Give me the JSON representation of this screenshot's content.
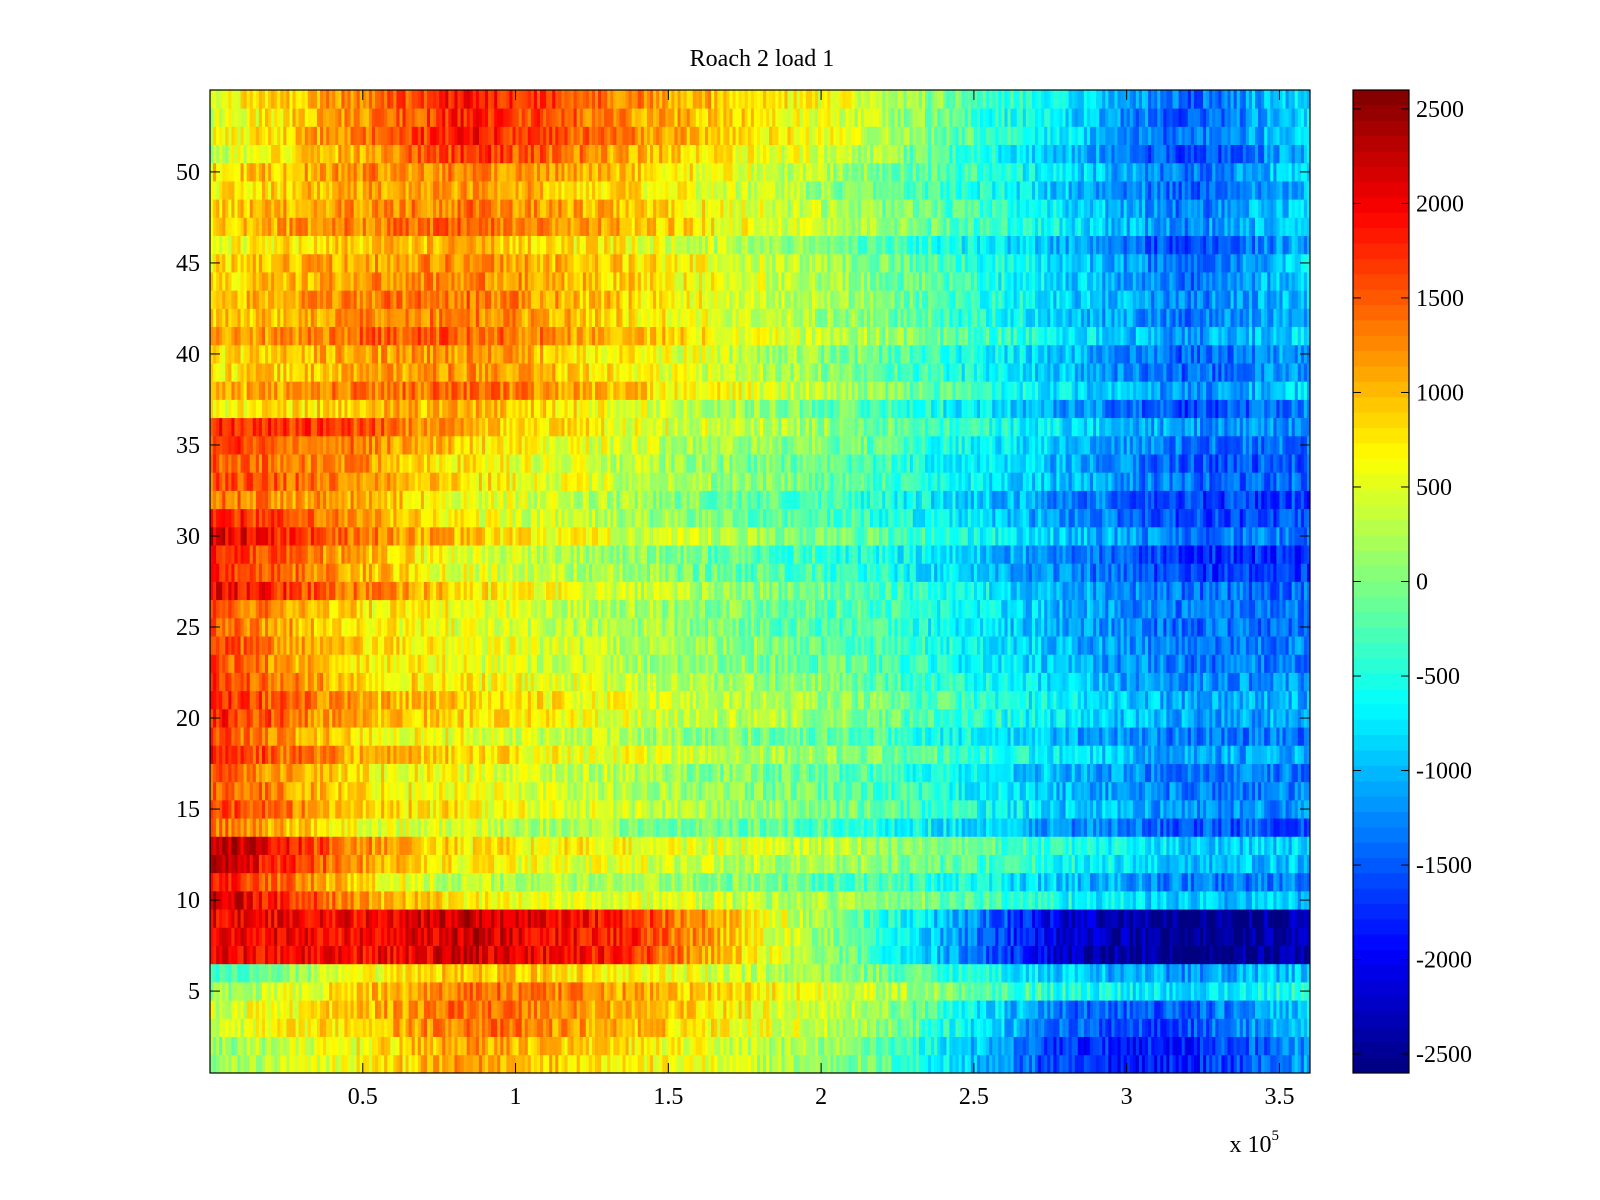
{
  "chart_data": {
    "type": "heatmap",
    "title": "Roach 2 load 1",
    "xlabel": "",
    "ylabel": "",
    "x_exponent_label": "x 10",
    "x_exponent": "5",
    "xlim": [
      0,
      3.6
    ],
    "ylim": [
      0.5,
      54.5
    ],
    "clim": [
      -2600,
      2600
    ],
    "colormap": "jet",
    "x_ticks": [
      0.5,
      1,
      1.5,
      2,
      2.5,
      3,
      3.5
    ],
    "x_tick_labels": [
      "0.5",
      "1",
      "1.5",
      "2",
      "2.5",
      "3",
      "3.5"
    ],
    "y_ticks": [
      5,
      10,
      15,
      20,
      25,
      30,
      35,
      40,
      45,
      50
    ],
    "y_tick_labels": [
      "5",
      "10",
      "15",
      "20",
      "25",
      "30",
      "35",
      "40",
      "45",
      "50"
    ],
    "colorbar_ticks": [
      2500,
      2000,
      1500,
      1000,
      500,
      0,
      -500,
      -1000,
      -1500,
      -2000,
      -2500
    ],
    "colorbar_tick_labels": [
      "2500",
      "2000",
      "1500",
      "1000",
      "500",
      "0",
      "-500",
      "-1000",
      "-1500",
      "-2000",
      "-2500"
    ],
    "n_rows": 54,
    "x_profile_units": "x 10^5",
    "x_profile_x": [
      0.0,
      0.5,
      0.85,
      1.35,
      2.15,
      2.8,
      3.2,
      3.6
    ],
    "x_profile_values": [
      1300,
      1000,
      950,
      700,
      100,
      -800,
      -1200,
      -1000
    ],
    "row_group_profiles": [
      {
        "rows": "1-4",
        "values": [
          300,
          900,
          1400,
          1000,
          200,
          -1500,
          -1600,
          -900
        ]
      },
      {
        "rows": "5-6",
        "values": [
          -200,
          700,
          1200,
          900,
          200,
          -700,
          -1000,
          -700
        ]
      },
      {
        "rows": "7-9",
        "values": [
          2000,
          1900,
          2200,
          1800,
          -300,
          -2200,
          -2600,
          -2400
        ]
      },
      {
        "rows": "10-13",
        "values": [
          2200,
          1000,
          500,
          400,
          0,
          -700,
          -1100,
          -1100
        ]
      },
      {
        "rows": "14-26",
        "values": [
          1600,
          800,
          600,
          300,
          -200,
          -1000,
          -1300,
          -1300
        ]
      },
      {
        "rows": "27-31",
        "values": [
          2000,
          1200,
          700,
          300,
          -300,
          -1100,
          -1500,
          -1500
        ]
      },
      {
        "rows": "32-36",
        "values": [
          1600,
          1300,
          800,
          400,
          -200,
          -1000,
          -1400,
          -1400
        ]
      },
      {
        "rows": "37-43",
        "values": [
          800,
          1200,
          1300,
          800,
          0,
          -900,
          -1400,
          -1000
        ]
      },
      {
        "rows": "44-50",
        "values": [
          700,
          1100,
          1200,
          800,
          0,
          -900,
          -1500,
          -900
        ]
      },
      {
        "rows": "51-54",
        "values": [
          400,
          1200,
          1800,
          1200,
          300,
          -900,
          -1600,
          -900
        ]
      }
    ]
  }
}
